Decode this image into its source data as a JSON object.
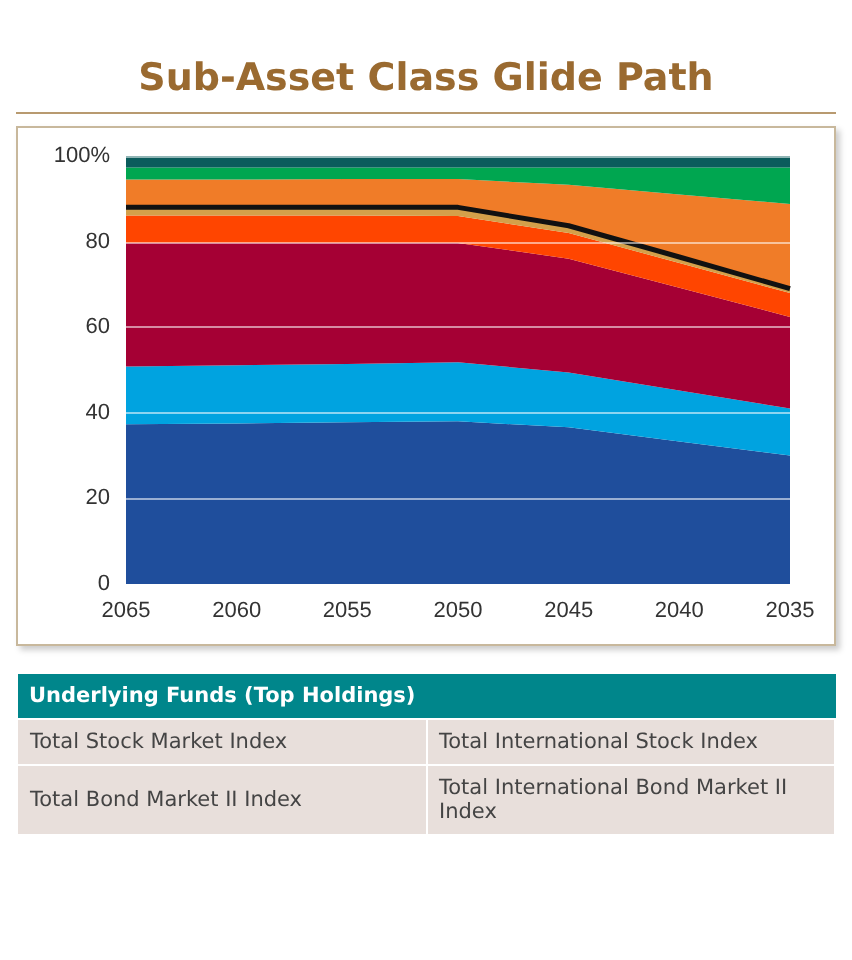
{
  "chart_data": {
    "type": "area",
    "stacked": true,
    "title": "Sub-Asset Class Glide Path",
    "categories": [
      "2065",
      "2060",
      "2055",
      "2050",
      "2045",
      "2040",
      "2035"
    ],
    "series": [
      {
        "color": "#1f4e9c",
        "values": [
          37.3,
          37.5,
          37.8,
          38,
          36.6,
          33.3,
          30
        ]
      },
      {
        "color": "#00a3e0",
        "values": [
          13.5,
          13.6,
          13.6,
          13.8,
          12.8,
          11.9,
          11
        ]
      },
      {
        "color": "#a50034",
        "values": [
          28.9,
          28.6,
          28.3,
          27.9,
          26.6,
          24,
          21.4
        ]
      },
      {
        "color": "#ff4500",
        "values": [
          6.4,
          6.4,
          6.4,
          6.3,
          6,
          5.8,
          5.6
        ]
      },
      {
        "color": "#d4a04a",
        "values": [
          1.9,
          1.9,
          1.9,
          2,
          1.7,
          1.4,
          1
        ]
      },
      {
        "color": "#f07c28",
        "values": [
          6.5,
          6.5,
          6.6,
          6.6,
          9.6,
          14.6,
          19.8
        ]
      },
      {
        "color": "#00a650",
        "values": [
          2.8,
          2.8,
          2.7,
          2.7,
          4,
          6.3,
          8.5
        ]
      },
      {
        "color": "#0b5c5c",
        "values": [
          2.7,
          2.7,
          2.7,
          2.7,
          2.7,
          2.7,
          2.7
        ]
      }
    ],
    "ylim": [
      0,
      100
    ],
    "yticks": [
      0,
      20,
      40,
      60,
      80,
      {
        "value": 100,
        "label": "100%"
      }
    ],
    "grid": "y",
    "annotations": [
      "Underlying Funds (Top Holdings)",
      "Total Stock Market Index",
      "Total International Stock Index",
      "Total Bond Market II Index",
      "Total International Bond Market II Index"
    ]
  }
}
